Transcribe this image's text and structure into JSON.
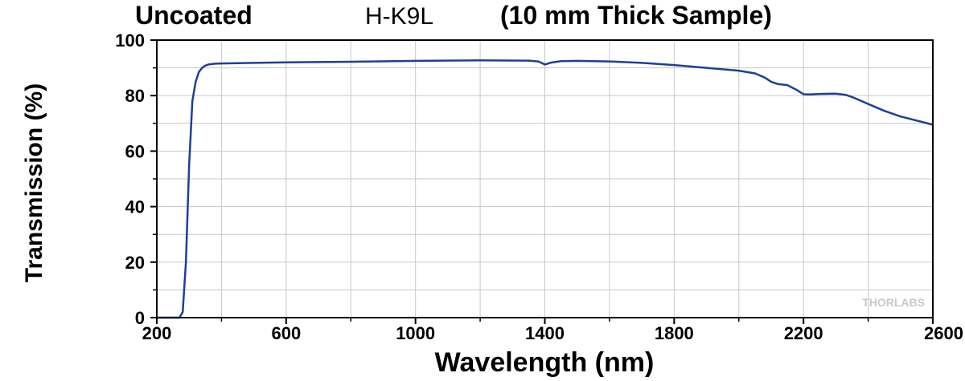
{
  "chart_data": {
    "type": "line",
    "title_parts": [
      "Uncoated",
      "H-K9L",
      "(10 mm Thick Sample)"
    ],
    "xlabel": "Wavelength (nm)",
    "ylabel": "Transmission (%)",
    "xlim": [
      200,
      2600
    ],
    "ylim": [
      0,
      100
    ],
    "x_ticks": [
      200,
      600,
      1000,
      1400,
      1800,
      2200,
      2600
    ],
    "x_tick_labels": [
      "200",
      "600",
      "1000",
      "1400",
      "1800",
      "2200",
      "2600"
    ],
    "y_ticks": [
      0,
      20,
      40,
      60,
      80,
      100
    ],
    "y_tick_labels": [
      "0",
      "20",
      "40",
      "60",
      "80",
      "100"
    ],
    "grid": true,
    "line_color": "#1f3f95",
    "watermark": "THORLABS",
    "series": [
      {
        "x": [
          200,
          270,
          280,
          290,
          300,
          310,
          320,
          330,
          340,
          350,
          360,
          380,
          400,
          500,
          600,
          800,
          1000,
          1200,
          1350,
          1380,
          1400,
          1420,
          1450,
          1500,
          1600,
          1700,
          1800,
          1900,
          2000,
          2050,
          2080,
          2100,
          2120,
          2150,
          2180,
          2200,
          2220,
          2250,
          2300,
          2330,
          2350,
          2400,
          2450,
          2500,
          2550,
          2600
        ],
        "y": [
          0,
          0,
          2,
          20,
          55,
          78,
          85,
          88.5,
          90,
          90.8,
          91.2,
          91.5,
          91.6,
          91.8,
          92,
          92.2,
          92.5,
          92.7,
          92.6,
          92.3,
          91.2,
          91.9,
          92.4,
          92.5,
          92.3,
          91.8,
          91,
          90,
          89,
          88,
          86.5,
          85,
          84.2,
          83.8,
          82,
          80.5,
          80.4,
          80.6,
          80.7,
          80.3,
          79.5,
          77,
          74.5,
          72.5,
          71,
          69.5
        ]
      }
    ]
  }
}
